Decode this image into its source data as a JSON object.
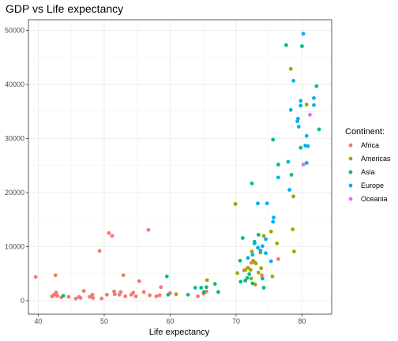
{
  "chart_data": {
    "type": "scatter",
    "title": "GDP vs Life expectancy",
    "xlabel": "Life expectancy",
    "ylabel": "",
    "xlim": [
      38.5,
      84.5
    ],
    "ylim": [
      -2500,
      52000
    ],
    "xticks": [
      40,
      50,
      60,
      70,
      80
    ],
    "yticks": [
      0,
      10000,
      20000,
      30000,
      40000,
      50000
    ],
    "grid": true,
    "legend": {
      "title": "Continent:",
      "position": "right"
    },
    "series": [
      {
        "name": "Africa",
        "color": "#F8766D",
        "points": [
          [
            39.6,
            4400
          ],
          [
            42.1,
            800
          ],
          [
            42.4,
            1100
          ],
          [
            42.6,
            4700
          ],
          [
            42.7,
            1500
          ],
          [
            42.9,
            900
          ],
          [
            43.5,
            600
          ],
          [
            44.6,
            700
          ],
          [
            45.7,
            400
          ],
          [
            46.2,
            700
          ],
          [
            46.4,
            500
          ],
          [
            46.9,
            1800
          ],
          [
            47.8,
            700
          ],
          [
            48.2,
            1100
          ],
          [
            48.3,
            500
          ],
          [
            49.3,
            9200
          ],
          [
            49.6,
            400
          ],
          [
            50.4,
            1100
          ],
          [
            50.7,
            12500
          ],
          [
            51.2,
            12000
          ],
          [
            51.5,
            1700
          ],
          [
            51.6,
            1200
          ],
          [
            52.3,
            1100
          ],
          [
            52.5,
            1600
          ],
          [
            52.9,
            4700
          ],
          [
            53.2,
            800
          ],
          [
            54.1,
            1100
          ],
          [
            54.4,
            1500
          ],
          [
            54.8,
            800
          ],
          [
            55.3,
            3600
          ],
          [
            56.0,
            1600
          ],
          [
            56.7,
            13100
          ],
          [
            56.9,
            1000
          ],
          [
            57.9,
            800
          ],
          [
            58.4,
            1000
          ],
          [
            58.6,
            2500
          ],
          [
            60.0,
            1400
          ],
          [
            64.2,
            800
          ],
          [
            65.1,
            1300
          ],
          [
            65.5,
            1700
          ],
          [
            71.2,
            5600
          ],
          [
            72.3,
            7000
          ],
          [
            72.8,
            7100
          ],
          [
            73.9,
            4700
          ],
          [
            76.4,
            7700
          ]
        ]
      },
      {
        "name": "Americas",
        "color": "#A3A500",
        "points": [
          [
            60.9,
            1200
          ],
          [
            65.6,
            3800
          ],
          [
            69.9,
            17900
          ],
          [
            70.2,
            5100
          ],
          [
            71.4,
            5700
          ],
          [
            71.8,
            6100
          ],
          [
            72.2,
            5700
          ],
          [
            72.3,
            4100
          ],
          [
            72.4,
            9100
          ],
          [
            72.6,
            7400
          ],
          [
            72.9,
            3000
          ],
          [
            73.0,
            6900
          ],
          [
            73.4,
            5200
          ],
          [
            73.7,
            8900
          ],
          [
            73.8,
            6000
          ],
          [
            74.2,
            12000
          ],
          [
            75.3,
            12800
          ],
          [
            75.5,
            4500
          ],
          [
            76.2,
            10600
          ],
          [
            78.3,
            42900
          ],
          [
            78.6,
            13200
          ],
          [
            78.7,
            19300
          ],
          [
            78.8,
            9100
          ],
          [
            80.7,
            36300
          ]
        ]
      },
      {
        "name": "Asia",
        "color": "#00BF7D",
        "points": [
          [
            43.8,
            900
          ],
          [
            59.5,
            4500
          ],
          [
            59.7,
            1100
          ],
          [
            62.7,
            1100
          ],
          [
            63.8,
            2400
          ],
          [
            64.7,
            2400
          ],
          [
            65.1,
            1600
          ],
          [
            65.5,
            2500
          ],
          [
            66.8,
            3100
          ],
          [
            67.3,
            1600
          ],
          [
            70.6,
            7400
          ],
          [
            70.7,
            3500
          ],
          [
            71.0,
            11600
          ],
          [
            71.4,
            3700
          ],
          [
            71.7,
            4200
          ],
          [
            72.0,
            4900
          ],
          [
            72.4,
            21700
          ],
          [
            72.5,
            3200
          ],
          [
            72.8,
            10900
          ],
          [
            73.4,
            12200
          ],
          [
            74.0,
            4100
          ],
          [
            74.2,
            2400
          ],
          [
            75.6,
            29800
          ],
          [
            76.4,
            25200
          ],
          [
            77.6,
            47300
          ],
          [
            78.4,
            23300
          ],
          [
            79.8,
            28300
          ],
          [
            80.0,
            47100
          ],
          [
            82.2,
            39700
          ],
          [
            82.6,
            31700
          ]
        ]
      },
      {
        "name": "Europe",
        "color": "#00B0F6",
        "points": [
          [
            71.8,
            7900
          ],
          [
            72.5,
            8500
          ],
          [
            72.8,
            10600
          ],
          [
            73.3,
            9800
          ],
          [
            73.3,
            18000
          ],
          [
            73.7,
            9300
          ],
          [
            74.0,
            10100
          ],
          [
            74.5,
            8800
          ],
          [
            74.5,
            11400
          ],
          [
            74.7,
            18000
          ],
          [
            75.3,
            7300
          ],
          [
            75.6,
            14600
          ],
          [
            75.7,
            15400
          ],
          [
            76.4,
            22800
          ],
          [
            77.9,
            25700
          ],
          [
            78.1,
            20500
          ],
          [
            78.3,
            35300
          ],
          [
            78.7,
            40700
          ],
          [
            79.3,
            33200
          ],
          [
            79.4,
            33700
          ],
          [
            79.5,
            32200
          ],
          [
            79.8,
            37000
          ],
          [
            79.8,
            36100
          ],
          [
            80.2,
            49400
          ],
          [
            80.5,
            28700
          ],
          [
            80.7,
            30500
          ],
          [
            80.9,
            28600
          ],
          [
            81.8,
            36200
          ],
          [
            81.8,
            37500
          ],
          [
            80.7,
            25500
          ]
        ]
      },
      {
        "name": "Oceania",
        "color": "#E76BF3",
        "points": [
          [
            80.2,
            25200
          ],
          [
            81.2,
            34400
          ]
        ]
      }
    ]
  }
}
